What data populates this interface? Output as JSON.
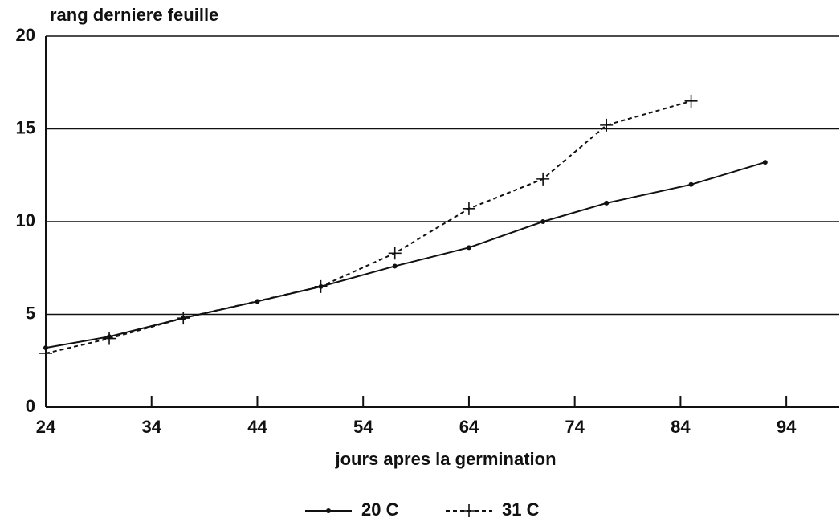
{
  "chart_data": {
    "type": "line",
    "y_label": "rang derniere feuille",
    "x_label": "jours apres la germination",
    "xlim": [
      24,
      99
    ],
    "xticks": [
      24,
      34,
      44,
      54,
      64,
      74,
      84,
      94
    ],
    "ylim": [
      0,
      20
    ],
    "yticks": [
      0,
      5,
      10,
      15,
      20
    ],
    "grid": true,
    "legend": "bottom",
    "series": [
      {
        "name": "20 C",
        "color": "#111111",
        "dash": "solid",
        "marker": "dot",
        "x": [
          24,
          30,
          37,
          44,
          50,
          57,
          64,
          71,
          77,
          85,
          92
        ],
        "values": [
          3.2,
          3.8,
          4.8,
          5.7,
          6.5,
          7.6,
          8.6,
          10.0,
          11.0,
          12.0,
          13.2
        ]
      },
      {
        "name": "31 C",
        "color": "#111111",
        "dash": "dashed",
        "marker": "plus",
        "x": [
          24,
          30,
          37,
          50,
          57,
          64,
          71,
          77,
          85
        ],
        "values": [
          2.9,
          3.7,
          4.8,
          6.5,
          8.3,
          10.7,
          12.3,
          15.2,
          16.5
        ]
      }
    ]
  }
}
